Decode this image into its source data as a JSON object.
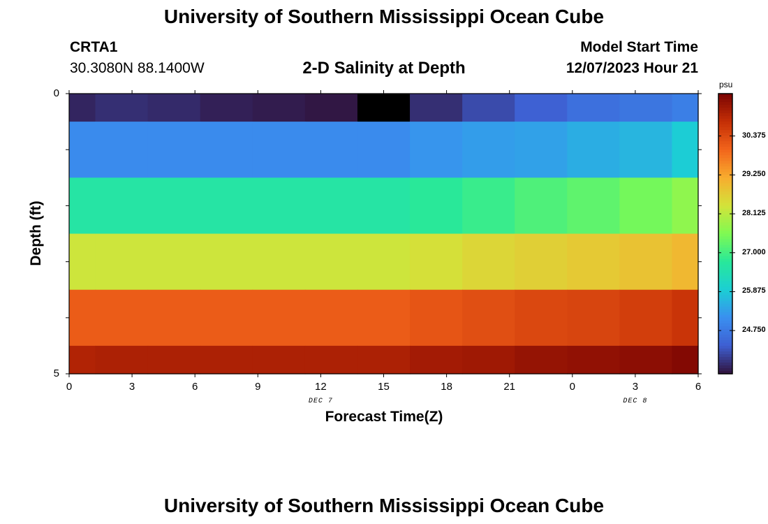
{
  "page": {
    "title": "University of Southern Mississippi Ocean Cube",
    "footer_title": "University of Southern Mississippi Ocean Cube"
  },
  "station": {
    "id": "CRTA1",
    "coords": "30.3080N  88.1400W"
  },
  "model": {
    "label": "Model Start Time",
    "start": "12/07/2023 Hour 21"
  },
  "chart_data": {
    "type": "heatmap",
    "title": "2-D Salinity at Depth",
    "xlabel": "Forecast Time(Z)",
    "ylabel": "Depth (ft)",
    "x_tick_labels": [
      "0",
      "3",
      "6",
      "9",
      "12",
      "15",
      "18",
      "21",
      "0",
      "3",
      "6"
    ],
    "x_date_labels": [
      {
        "text": "DEC 7",
        "at_hour": 12
      },
      {
        "text": "DEC 8",
        "at_hour": 27
      }
    ],
    "xlim_hours": [
      0,
      30
    ],
    "y_tick_labels": [
      "0",
      "5"
    ],
    "ylim_ft": [
      0,
      5
    ],
    "cell_boundaries_hours": [
      0,
      1.25,
      3.75,
      6.25,
      8.75,
      11.25,
      13.75,
      16.25,
      18.75,
      21.25,
      23.75,
      26.25,
      28.75,
      30
    ],
    "depth_boundaries_ft": [
      0,
      0.5,
      1.5,
      2.5,
      3.5,
      4.5,
      5
    ],
    "colorbar": {
      "unit": "psu",
      "min": 23.5,
      "max": 31.6,
      "ticks": [
        24.75,
        25.875,
        27.0,
        28.125,
        29.25,
        30.375
      ],
      "tick_labels": [
        "24.750",
        "25.875",
        "27.000",
        "28.125",
        "29.250",
        "30.375"
      ],
      "colormap": [
        "#30123b",
        "#3e5fd2",
        "#3a8ff0",
        "#1bcfd4",
        "#28e89a",
        "#7ffa52",
        "#d3e33a",
        "#f8ac2e",
        "#f2641b",
        "#c42e06",
        "#7a0403"
      ]
    },
    "missing_color": "#000000",
    "salinity_psu": [
      [
        23.7,
        23.8,
        23.75,
        23.65,
        23.6,
        23.55,
        null,
        23.8,
        24.1,
        24.35,
        24.6,
        24.7,
        24.85
      ],
      [
        25.05,
        25.05,
        25.05,
        25.05,
        25.05,
        25.05,
        25.05,
        25.2,
        25.3,
        25.35,
        25.5,
        25.6,
        25.9
      ],
      [
        26.6,
        26.6,
        26.6,
        26.6,
        26.6,
        26.6,
        26.6,
        26.75,
        26.9,
        27.1,
        27.25,
        27.45,
        27.7
      ],
      [
        28.3,
        28.3,
        28.3,
        28.3,
        28.3,
        28.3,
        28.3,
        28.4,
        28.55,
        28.65,
        28.75,
        28.85,
        29.0
      ],
      [
        30.1,
        30.1,
        30.1,
        30.1,
        30.1,
        30.1,
        30.1,
        30.2,
        30.3,
        30.4,
        30.45,
        30.55,
        30.7
      ],
      [
        31.0,
        31.05,
        31.05,
        31.05,
        31.05,
        31.05,
        31.05,
        31.15,
        31.2,
        31.3,
        31.35,
        31.4,
        31.5
      ]
    ]
  }
}
